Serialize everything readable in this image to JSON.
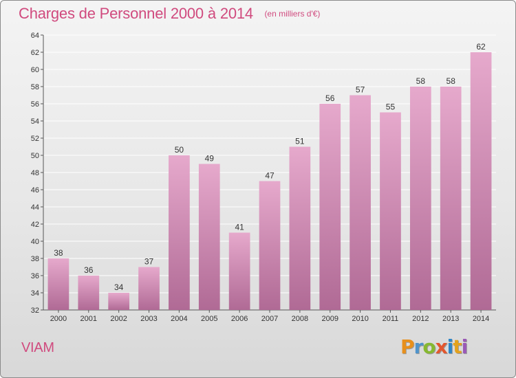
{
  "header": {
    "title": "Charges de Personnel 2000 à 2014",
    "subtitle": "(en milliers d'€)"
  },
  "footer": {
    "commune": "VIAM",
    "logo_text": "Proxiti"
  },
  "colors": {
    "title": "#d04a7e",
    "bar_top": "#e6a9cc",
    "bar_bottom": "#b06a95",
    "grid": "#ffffff"
  },
  "chart_data": {
    "type": "bar",
    "title": "Charges de Personnel 2000 à 2014",
    "subtitle": "(en milliers d'€)",
    "categories": [
      "2000",
      "2001",
      "2002",
      "2003",
      "2004",
      "2005",
      "2006",
      "2007",
      "2008",
      "2009",
      "2010",
      "2011",
      "2012",
      "2013",
      "2014"
    ],
    "values": [
      38,
      36,
      34,
      37,
      50,
      49,
      41,
      47,
      51,
      56,
      57,
      55,
      58,
      58,
      62
    ],
    "ylim": [
      32,
      64
    ],
    "yticks": [
      32,
      34,
      36,
      38,
      40,
      42,
      44,
      46,
      48,
      50,
      52,
      54,
      56,
      58,
      60,
      62,
      64
    ],
    "grid": true,
    "data_labels": true,
    "xlabel": "",
    "ylabel": ""
  }
}
